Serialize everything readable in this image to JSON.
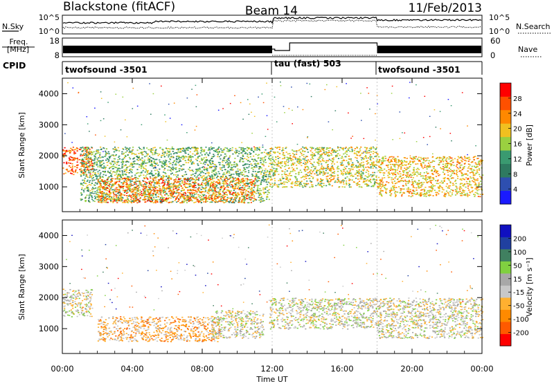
{
  "header": {
    "station": "Blackstone (fitACF)",
    "beam": "Beam 14",
    "date": "11/Feb/2013"
  },
  "colors": {
    "power_scale": [
      "#1a1aff",
      "#2e4fb0",
      "#2e7a60",
      "#3a9a70",
      "#9ad040",
      "#f0c020",
      "#ff8800",
      "#ff5000",
      "#ff0000"
    ],
    "velocity_scale": [
      "#ff0000",
      "#ff5a00",
      "#ff8a00",
      "#ffb030",
      "#c8c8c8",
      "#a8a8a8",
      "#80d040",
      "#408060",
      "#2040a0",
      "#1010c0"
    ]
  },
  "noise_panel": {
    "left_label": "N.Sky",
    "left_ticks": [
      "10^5",
      "10^0"
    ],
    "right_label": "N.Search",
    "right_ticks": [
      "10^5",
      "10^0"
    ]
  },
  "freq_panel": {
    "left_label_1": "Freq.",
    "left_label_2": "[MHz]",
    "left_ticks": [
      "18",
      "8"
    ],
    "right_label": "Nave",
    "right_ticks": [
      "60",
      "0"
    ]
  },
  "cpid_panel": {
    "label": "CPID",
    "segments": [
      "twofsound -3501",
      "tau (fast) 503",
      "twofsound -3501"
    ]
  },
  "power_panel": {
    "ylabel": "Slant Range [km]",
    "colorbar_label": "Power [dB]",
    "colorbar_ticks": [
      "28",
      "24",
      "20",
      "16",
      "12",
      "8",
      "4"
    ]
  },
  "velocity_panel": {
    "ylabel": "Slant Range [km]",
    "colorbar_label": "Velocity [m s⁻¹]",
    "colorbar_ticks": [
      "200",
      "100",
      "50",
      "15",
      "-15",
      "-50",
      "-100",
      "-200"
    ]
  },
  "chart_data": [
    {
      "type": "heatmap",
      "title": "",
      "xlabel": "Time UT",
      "ylabel": "Slant Range [km]",
      "x_ticks": [
        "00:00",
        "04:00",
        "08:00",
        "12:00",
        "16:00",
        "20:00",
        "00:00"
      ],
      "x_range_hours": [
        0,
        24
      ],
      "y_ticks": [
        1000,
        2000,
        3000,
        4000
      ],
      "ylim": [
        200,
        4500
      ],
      "colorbar": {
        "label": "Power [dB]",
        "range": [
          0,
          32
        ],
        "ticks": [
          28,
          24,
          20,
          16,
          12,
          8,
          4
        ]
      },
      "echo_regions": [
        {
          "t": [
            0.0,
            1.7
          ],
          "range": [
            1400,
            2300
          ],
          "value": 26
        },
        {
          "t": [
            1.0,
            11.8
          ],
          "range": [
            500,
            2300
          ],
          "value": 14
        },
        {
          "t": [
            2.0,
            11.0
          ],
          "range": [
            500,
            1300
          ],
          "value": 24
        },
        {
          "t": [
            11.8,
            18.0
          ],
          "range": [
            1000,
            2300
          ],
          "value": 18
        },
        {
          "t": [
            18.0,
            24.0
          ],
          "range": [
            700,
            2000
          ],
          "value": 20
        }
      ]
    },
    {
      "type": "heatmap",
      "title": "",
      "xlabel": "Time UT",
      "ylabel": "Slant Range [km]",
      "x_ticks": [
        "00:00",
        "04:00",
        "08:00",
        "12:00",
        "16:00",
        "20:00",
        "00:00"
      ],
      "x_range_hours": [
        0,
        24
      ],
      "y_ticks": [
        1000,
        2000,
        3000,
        4000
      ],
      "ylim": [
        200,
        4500
      ],
      "colorbar": {
        "label": "Velocity [m s⁻¹]",
        "range": [
          -250,
          250
        ],
        "ticks": [
          200,
          100,
          50,
          15,
          -15,
          -50,
          -100,
          -200
        ]
      },
      "echo_regions": [
        {
          "t": [
            0.0,
            1.7
          ],
          "range": [
            1400,
            2300
          ],
          "value": 0
        },
        {
          "t": [
            2.0,
            9.0
          ],
          "range": [
            600,
            1400
          ],
          "value": -80
        },
        {
          "t": [
            8.5,
            11.5
          ],
          "range": [
            700,
            1600
          ],
          "value": 0
        },
        {
          "t": [
            11.8,
            18.0
          ],
          "range": [
            1000,
            2000
          ],
          "value": 0
        },
        {
          "t": [
            18.0,
            24.0
          ],
          "range": [
            700,
            2000
          ],
          "value": -10
        }
      ]
    }
  ]
}
